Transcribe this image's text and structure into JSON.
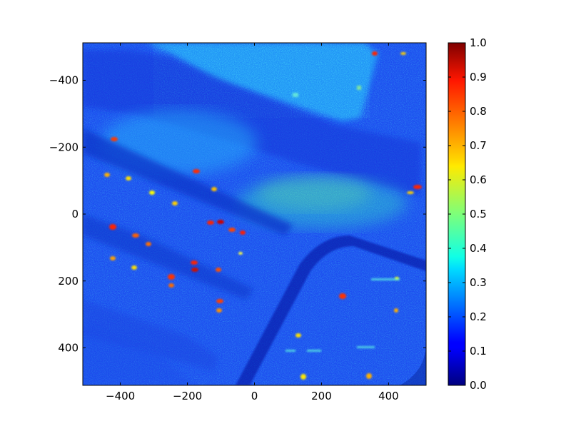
{
  "figure": {
    "kind": "heatmap-image",
    "description_visible_text_only": true
  },
  "axes": {
    "x_ticks": [
      "−400",
      "−200",
      "0",
      "200",
      "400"
    ],
    "y_ticks": [
      "−400",
      "−200",
      "0",
      "200",
      "400"
    ],
    "x_range": [
      -512,
      512
    ],
    "y_range": [
      -512,
      512
    ],
    "y_inverted": true
  },
  "colorbar": {
    "colormap": "jet",
    "range": [
      0.0,
      1.0
    ],
    "ticks": [
      "0.0",
      "0.1",
      "0.2",
      "0.3",
      "0.4",
      "0.5",
      "0.6",
      "0.7",
      "0.8",
      "0.9",
      "1.0"
    ]
  },
  "chart_data": {
    "type": "heatmap",
    "title": "",
    "xlabel": "",
    "ylabel": "",
    "xlim": [
      -512,
      512
    ],
    "ylim": [
      512,
      -512
    ],
    "colorbar_range": [
      0.0,
      1.0
    ],
    "colormap": "jet"
  }
}
